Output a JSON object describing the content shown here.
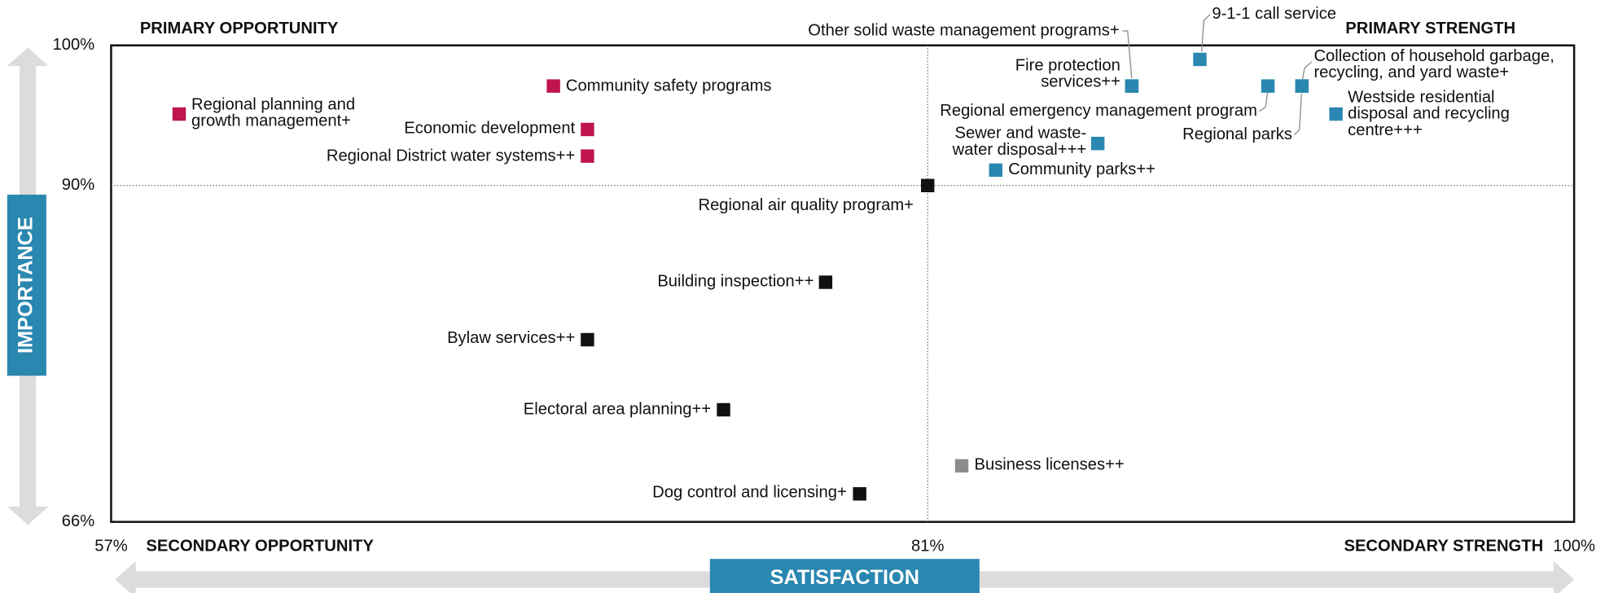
{
  "chart_data": {
    "type": "scatter",
    "xlabel": "SATISFACTION",
    "ylabel": "IMPORTANCE",
    "quadrant_labels": {
      "top_left": {
        "text": "PRIMARY OPPORTUNITY",
        "color": "#c0144c"
      },
      "top_right": {
        "text": "PRIMARY STRENGTH",
        "color": "#2a87b0"
      },
      "bottom_left": {
        "text": "SECONDARY OPPORTUNITY",
        "color": "#111111"
      },
      "bottom_right": {
        "text": "SECONDARY STRENGTH",
        "color": "#8c8c8c"
      }
    },
    "xlim": [
      57,
      100
    ],
    "ylim": [
      66,
      100
    ],
    "xticks": [
      {
        "value": 57,
        "label": "57%"
      },
      {
        "value": 81,
        "label": "81%"
      },
      {
        "value": 100,
        "label": "100%"
      }
    ],
    "yticks": [
      {
        "value": 66,
        "label": "66%"
      },
      {
        "value": 90,
        "label": "90%"
      },
      {
        "value": 100,
        "label": "100%"
      }
    ],
    "points": [
      {
        "label": [
          "Regional planning and",
          "growth management+"
        ],
        "x": 59,
        "y": 95.1,
        "color": "#c0144c"
      },
      {
        "label": [
          "Community safety programs"
        ],
        "x": 70,
        "y": 97.1,
        "color": "#c0144c"
      },
      {
        "label": [
          "Economic development"
        ],
        "x": 71,
        "y": 94,
        "color": "#c0144c"
      },
      {
        "label": [
          "Regional District water systems++"
        ],
        "x": 71,
        "y": 92.1,
        "color": "#c0144c"
      },
      {
        "label": [
          "Regional air quality program+"
        ],
        "x": 81,
        "y": 90,
        "color": "#111111"
      },
      {
        "label": [
          "Building inspection++"
        ],
        "x": 78,
        "y": 83.1,
        "color": "#111111"
      },
      {
        "label": [
          "Bylaw services++"
        ],
        "x": 71,
        "y": 79,
        "color": "#111111"
      },
      {
        "label": [
          "Electoral area planning++"
        ],
        "x": 75,
        "y": 74,
        "color": "#111111"
      },
      {
        "label": [
          "Dog control and licensing+"
        ],
        "x": 79,
        "y": 68,
        "color": "#111111"
      },
      {
        "label": [
          "Business licenses++"
        ],
        "x": 82,
        "y": 70,
        "color": "#8c8c8c"
      },
      {
        "label": [
          "Community parks++"
        ],
        "x": 83,
        "y": 91.1,
        "color": "#2a87b0"
      },
      {
        "label": [
          "Sewer and waste-",
          "water disposal+++"
        ],
        "x": 86,
        "y": 93,
        "color": "#2a87b0"
      },
      {
        "label": [
          "Fire protection",
          "services++"
        ],
        "x": 87,
        "y": 97.1,
        "color": "#2a87b0"
      },
      {
        "label": [
          "Other solid waste management programs+"
        ],
        "x": 87,
        "y": 97.1,
        "color": "#2a87b0"
      },
      {
        "label": [
          "9-1-1 call service"
        ],
        "x": 89,
        "y": 99,
        "color": "#2a87b0"
      },
      {
        "label": [
          "Regional emergency management program"
        ],
        "x": 91,
        "y": 97.1,
        "color": "#2a87b0"
      },
      {
        "label": [
          "Collection of household garbage,",
          "recycling, and yard waste+"
        ],
        "x": 92,
        "y": 97.1,
        "color": "#2a87b0"
      },
      {
        "label": [
          "Regional parks"
        ],
        "x": 92,
        "y": 97.1,
        "color": "#2a87b0"
      },
      {
        "label": [
          "Westside residential",
          "disposal and recycling",
          "centre+++"
        ],
        "x": 93,
        "y": 95.1,
        "color": "#2a87b0"
      }
    ]
  }
}
